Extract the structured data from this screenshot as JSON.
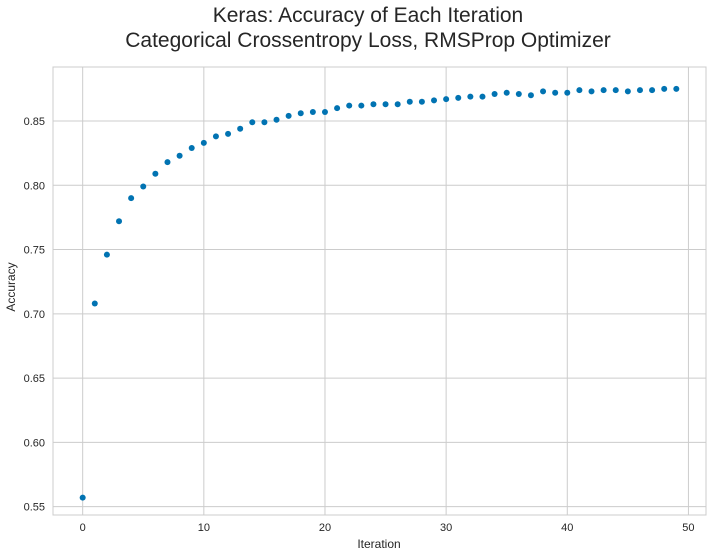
{
  "chart_data": {
    "type": "scatter",
    "title": "Keras: Accuracy of Each Iteration",
    "subtitle": "Categorical Crossentropy Loss, RMSProp Optimizer",
    "xlabel": "Iteration",
    "ylabel": "Accuracy",
    "xlim": [
      -2.45,
      51.45
    ],
    "ylim": [
      0.5435,
      0.892
    ],
    "xticks": [
      0,
      10,
      20,
      30,
      40,
      50
    ],
    "yticks": [
      0.55,
      0.6,
      0.65,
      0.7,
      0.75,
      0.8,
      0.85
    ],
    "ytick_labels": [
      "0.55",
      "0.60",
      "0.65",
      "0.70",
      "0.75",
      "0.80",
      "0.85"
    ],
    "grid": true,
    "legend": "none",
    "marker_color": "#0173b2",
    "x": [
      0,
      1,
      2,
      3,
      4,
      5,
      6,
      7,
      8,
      9,
      10,
      11,
      12,
      13,
      14,
      15,
      16,
      17,
      18,
      19,
      20,
      21,
      22,
      23,
      24,
      25,
      26,
      27,
      28,
      29,
      30,
      31,
      32,
      33,
      34,
      35,
      36,
      37,
      38,
      39,
      40,
      41,
      42,
      43,
      44,
      45,
      46,
      47,
      48,
      49
    ],
    "y": [
      0.557,
      0.708,
      0.746,
      0.772,
      0.79,
      0.799,
      0.809,
      0.818,
      0.823,
      0.829,
      0.833,
      0.838,
      0.84,
      0.844,
      0.849,
      0.849,
      0.851,
      0.854,
      0.856,
      0.857,
      0.857,
      0.86,
      0.862,
      0.862,
      0.863,
      0.863,
      0.863,
      0.865,
      0.865,
      0.866,
      0.867,
      0.868,
      0.869,
      0.869,
      0.871,
      0.872,
      0.871,
      0.87,
      0.873,
      0.872,
      0.872,
      0.874,
      0.873,
      0.874,
      0.874,
      0.873,
      0.874,
      0.874,
      0.875,
      0.875
    ]
  },
  "colors": {
    "background": "#ffffff",
    "grid": "#cccccc",
    "axis_frame": "#cccccc",
    "text": "#262626",
    "marker": "#0173b2"
  }
}
